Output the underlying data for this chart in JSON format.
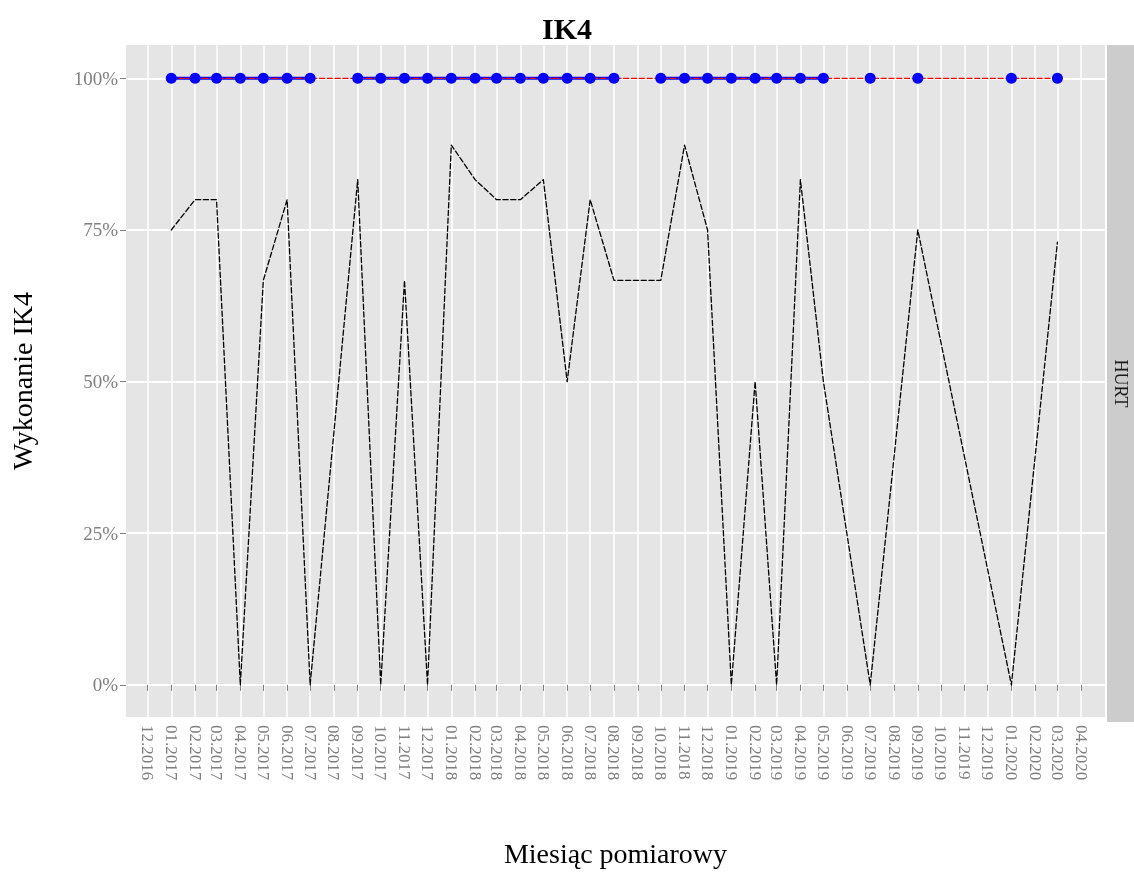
{
  "chart_data": {
    "type": "line",
    "title": "IK4",
    "xlabel": "Miesiąc pomiarowy",
    "ylabel": "Wykonanie IK4",
    "annotations": [
      "HURT"
    ],
    "x": [
      "2017-01",
      "2017-02",
      "2017-03",
      "2017-04",
      "2017-05",
      "2017-06",
      "2017-07",
      "2017-09",
      "2017-10",
      "2017-11",
      "2017-12",
      "2018-01",
      "2018-02",
      "2018-03",
      "2018-04",
      "2018-05",
      "2018-06",
      "2018-07",
      "2018-08",
      "2018-10",
      "2018-11",
      "2018-12",
      "2019-01",
      "2019-02",
      "2019-03",
      "2019-04",
      "2019-05",
      "2019-07",
      "2019-09",
      "2020-01",
      "2020-03"
    ],
    "series": [
      {
        "color": "#000000",
        "line_style": "dashed",
        "marker": "none",
        "values": [
          75,
          80,
          80,
          0,
          66.7,
          80,
          0,
          83.3,
          0,
          66.7,
          0,
          89,
          83.3,
          80,
          80,
          83.3,
          50,
          80,
          66.7,
          66.7,
          89,
          75,
          0,
          50,
          0,
          83.3,
          50,
          0,
          75,
          0,
          73
        ]
      },
      {
        "color": "#0000ff",
        "line_style": "solid",
        "marker": "circle",
        "x": [
          "2017-01",
          "2017-02",
          "2017-03",
          "2017-04",
          "2017-05",
          "2017-06",
          "2017-07",
          "2017-08",
          "2017-09",
          "2017-10",
          "2017-11",
          "2017-12",
          "2018-01",
          "2018-02",
          "2018-03",
          "2018-04",
          "2018-05",
          "2018-06",
          "2018-07",
          "2018-08",
          "2018-09",
          "2018-10",
          "2018-11",
          "2018-12",
          "2019-01",
          "2019-02",
          "2019-03",
          "2019-04",
          "2019-05",
          "2019-06",
          "2019-07",
          "2019-08",
          "2019-09",
          "2019-10",
          "2019-11",
          "2019-12",
          "2020-01",
          "2020-02",
          "2020-03"
        ],
        "values": [
          100,
          100,
          100,
          100,
          100,
          100,
          100,
          null,
          100,
          100,
          100,
          100,
          100,
          100,
          100,
          100,
          100,
          100,
          100,
          100,
          null,
          100,
          100,
          100,
          100,
          100,
          100,
          100,
          100,
          null,
          100,
          null,
          100,
          null,
          null,
          null,
          100,
          null,
          100
        ]
      },
      {
        "color": "#ff0000",
        "line_style": "dashed",
        "marker": "none",
        "values": [
          100,
          100,
          100,
          100,
          100,
          100,
          100,
          100,
          100,
          100,
          100,
          100,
          100,
          100,
          100,
          100,
          100,
          100,
          100,
          100,
          100,
          100,
          100,
          100,
          100,
          100,
          100,
          100,
          100,
          100,
          100
        ]
      }
    ],
    "xlim": [
      "2016-11-03",
      "2020-05-02"
    ],
    "xticks": [
      {
        "value": "2016-12",
        "label": "12.2016"
      },
      {
        "value": "2017-01",
        "label": "01.2017"
      },
      {
        "value": "2017-02",
        "label": "02.2017"
      },
      {
        "value": "2017-03",
        "label": "03.2017"
      },
      {
        "value": "2017-04",
        "label": "04.2017"
      },
      {
        "value": "2017-05",
        "label": "05.2017"
      },
      {
        "value": "2017-06",
        "label": "06.2017"
      },
      {
        "value": "2017-07",
        "label": "07.2017"
      },
      {
        "value": "2017-08",
        "label": "08.2017"
      },
      {
        "value": "2017-09",
        "label": "09.2017"
      },
      {
        "value": "2017-10",
        "label": "10.2017"
      },
      {
        "value": "2017-11",
        "label": "11.2017"
      },
      {
        "value": "2017-12",
        "label": "12.2017"
      },
      {
        "value": "2018-01",
        "label": "01.2018"
      },
      {
        "value": "2018-02",
        "label": "02.2018"
      },
      {
        "value": "2018-03",
        "label": "03.2018"
      },
      {
        "value": "2018-04",
        "label": "04.2018"
      },
      {
        "value": "2018-05",
        "label": "05.2018"
      },
      {
        "value": "2018-06",
        "label": "06.2018"
      },
      {
        "value": "2018-07",
        "label": "07.2018"
      },
      {
        "value": "2018-08",
        "label": "08.2018"
      },
      {
        "value": "2018-09",
        "label": "09.2018"
      },
      {
        "value": "2018-10",
        "label": "10.2018"
      },
      {
        "value": "2018-11",
        "label": "11.2018"
      },
      {
        "value": "2018-12",
        "label": "12.2018"
      },
      {
        "value": "2019-01",
        "label": "01.2019"
      },
      {
        "value": "2019-02",
        "label": "02.2019"
      },
      {
        "value": "2019-03",
        "label": "03.2019"
      },
      {
        "value": "2019-04",
        "label": "04.2019"
      },
      {
        "value": "2019-05",
        "label": "05.2019"
      },
      {
        "value": "2019-06",
        "label": "06.2019"
      },
      {
        "value": "2019-07",
        "label": "07.2019"
      },
      {
        "value": "2019-08",
        "label": "08.2019"
      },
      {
        "value": "2019-09",
        "label": "09.2019"
      },
      {
        "value": "2019-10",
        "label": "10.2019"
      },
      {
        "value": "2019-11",
        "label": "11.2019"
      },
      {
        "value": "2019-12",
        "label": "12.2019"
      },
      {
        "value": "2020-01",
        "label": "01.2020"
      },
      {
        "value": "2020-02",
        "label": "02.2020"
      },
      {
        "value": "2020-03",
        "label": "03.2020"
      },
      {
        "value": "2020-04",
        "label": "04.2020"
      }
    ],
    "ylim": [
      -5.3,
      105.5
    ],
    "yticks": [
      {
        "value": 0,
        "label": "0%"
      },
      {
        "value": 25,
        "label": "25%"
      },
      {
        "value": 50,
        "label": "50%"
      },
      {
        "value": 75,
        "label": "75%"
      },
      {
        "value": 100,
        "label": "100%"
      }
    ],
    "grid": true
  }
}
